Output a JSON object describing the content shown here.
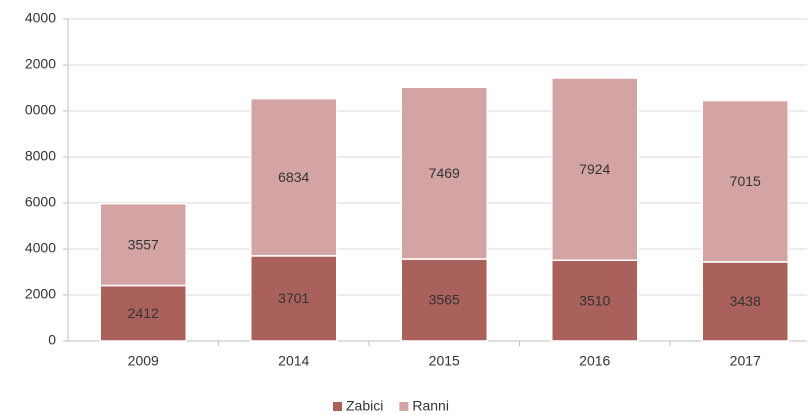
{
  "chart_data": {
    "type": "stacked_bar",
    "categories": [
      "2009",
      "2014",
      "2015",
      "2016",
      "2017"
    ],
    "series": [
      {
        "name": "Zabici",
        "color": "#ab615b",
        "values": [
          2412,
          3701,
          3565,
          3510,
          3438
        ]
      },
      {
        "name": "Ranni",
        "color": "#d4a4a4",
        "values": [
          3557,
          6834,
          7469,
          7924,
          7015
        ]
      }
    ],
    "ylim": [
      0,
      14000
    ],
    "yticks": [
      0,
      2000,
      4000,
      6000,
      8000,
      {
        "value": 10000,
        "label": "0000"
      },
      {
        "value": 12000,
        "label": "2000"
      },
      {
        "value": 14000,
        "label": "4000"
      }
    ],
    "grid": true,
    "legend": "bottom"
  }
}
